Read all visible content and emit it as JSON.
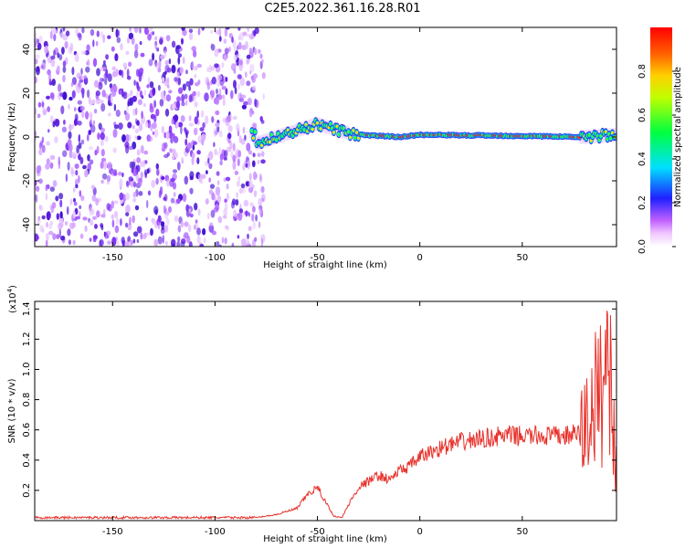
{
  "title": "C2E5.2022.361.16.28.R01",
  "colors": {
    "snr_line": "#e8322c",
    "spec_background": "#ffffff",
    "axis": "#000000"
  },
  "chart_data": [
    {
      "type": "heatmap",
      "xlabel": "Height of straight line (km)",
      "ylabel": "Frequency (Hz)",
      "xlim": [
        -188,
        96
      ],
      "ylim": [
        -50,
        50
      ],
      "xticks": [
        -150,
        -100,
        -50,
        0,
        50
      ],
      "yticks": [
        -40,
        -20,
        0,
        20,
        40
      ],
      "colorbar": {
        "label": "Normalized spectral amplitude",
        "range": [
          0,
          1
        ],
        "ticks": [
          "0.0",
          "0.2",
          "0.4",
          "0.6",
          "0.8"
        ],
        "colormap": "rainbow (white-violet-blue-cyan-green-yellow-orange-red)"
      },
      "features": {
        "noise_region_x": [
          -188,
          -76
        ],
        "signal_track": [
          {
            "x": -80,
            "y": -3
          },
          {
            "x": -70,
            "y": 0
          },
          {
            "x": -60,
            "y": 3
          },
          {
            "x": -50,
            "y": 6
          },
          {
            "x": -40,
            "y": 3
          },
          {
            "x": -30,
            "y": 1
          },
          {
            "x": -10,
            "y": 0
          },
          {
            "x": 0,
            "y": 1
          },
          {
            "x": 50,
            "y": 0.5
          },
          {
            "x": 80,
            "y": 0
          },
          {
            "x": 96,
            "y": 1
          }
        ]
      }
    },
    {
      "type": "line",
      "xlabel": "Height of straight line (km)",
      "ylabel": "SNR (10 * v/v)",
      "y_exponent": "(x10",
      "y_exponent_power": "4",
      "y_exponent_close": ")",
      "xlim": [
        -188,
        96
      ],
      "ylim": [
        0,
        1.45
      ],
      "xticks": [
        -150,
        -100,
        -50,
        0,
        50
      ],
      "yticks": [
        "0.2",
        "0.4",
        "0.6",
        "0.8",
        "1.0",
        "1.2",
        "1.4"
      ],
      "series": [
        {
          "x": [
            -188,
            -150,
            -100,
            -80,
            -70,
            -60,
            -55,
            -50,
            -45,
            -42,
            -38,
            -35,
            -30,
            -25,
            -20,
            -15,
            -10,
            -5,
            0,
            10,
            20,
            30,
            40,
            50,
            60,
            70,
            75,
            78,
            80,
            83,
            86,
            90,
            92,
            94,
            96
          ],
          "y": [
            0.02,
            0.02,
            0.02,
            0.02,
            0.04,
            0.08,
            0.17,
            0.22,
            0.1,
            0.03,
            0.02,
            0.1,
            0.22,
            0.26,
            0.3,
            0.27,
            0.33,
            0.36,
            0.42,
            0.48,
            0.52,
            0.54,
            0.56,
            0.56,
            0.56,
            0.56,
            0.57,
            0.58,
            0.6,
            0.7,
            0.8,
            0.9,
            1.2,
            0.7,
            0.3
          ]
        }
      ]
    }
  ]
}
